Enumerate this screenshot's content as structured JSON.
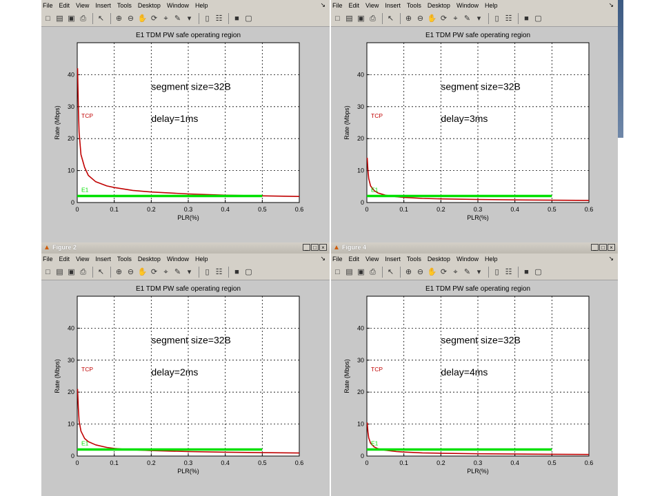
{
  "menu": [
    "File",
    "Edit",
    "View",
    "Insert",
    "Tools",
    "Desktop",
    "Window",
    "Help"
  ],
  "toolbar_icons": [
    "new-file-icon",
    "open-folder-icon",
    "save-icon",
    "print-icon",
    "arrow-icon",
    "zoom-in-icon",
    "zoom-out-icon",
    "pan-hand-icon",
    "rotate-3d-icon",
    "data-cursor-icon",
    "brush-icon",
    "link-icon",
    "colorbar-icon",
    "legend-icon",
    "hide-tools-icon",
    "show-tools-icon"
  ],
  "colors": {
    "tcp": "#c00000",
    "e1": "#00e000",
    "window_bg": "#c8c8c8",
    "plot_bg": "#ffffff"
  },
  "figures": [
    {
      "id": "fig1",
      "window_title": "",
      "has_titlebar": false,
      "annotation_size": "segment size=32B",
      "annotation_delay": "delay=1ms"
    },
    {
      "id": "fig3",
      "window_title": "",
      "has_titlebar": false,
      "annotation_size": "segment size=32B",
      "annotation_delay": "delay=3ms"
    },
    {
      "id": "fig2",
      "window_title": "Figure 2",
      "has_titlebar": true,
      "annotation_size": "segment size=32B",
      "annotation_delay": "delay=2ms"
    },
    {
      "id": "fig4",
      "window_title": "Figure 4",
      "has_titlebar": true,
      "annotation_size": "segment size=32B",
      "annotation_delay": "delay=4ms"
    }
  ],
  "chart_data": [
    {
      "type": "line",
      "title": "E1 TDM PW safe operating region",
      "xlabel": "PLR(%)",
      "ylabel": "Rate (Mbps)",
      "xlim": [
        0,
        0.6
      ],
      "ylim": [
        0,
        50
      ],
      "xticks": [
        "0",
        "0.1",
        "0.2",
        "0.3",
        "0.4",
        "0.5",
        "0.6"
      ],
      "yticks": [
        "0",
        "10",
        "20",
        "30",
        "40"
      ],
      "grid": true,
      "series": [
        {
          "name": "TCP",
          "color": "#c00000",
          "x": [
            0.001,
            0.003,
            0.005,
            0.01,
            0.02,
            0.03,
            0.05,
            0.08,
            0.1,
            0.15,
            0.2,
            0.3,
            0.4,
            0.5,
            0.6
          ],
          "y": [
            42,
            30,
            22,
            15,
            11,
            8.5,
            6.5,
            5.2,
            4.7,
            3.8,
            3.3,
            2.7,
            2.3,
            2.1,
            1.9
          ]
        },
        {
          "name": "E1",
          "color": "#00e000",
          "x": [
            0,
            0.5
          ],
          "y": [
            2.05,
            2.05
          ]
        }
      ]
    },
    {
      "type": "line",
      "title": "E1 TDM PW safe operating region",
      "xlabel": "PLR(%)",
      "ylabel": "Rate (Mbps)",
      "xlim": [
        0,
        0.6
      ],
      "ylim": [
        0,
        50
      ],
      "xticks": [
        "0",
        "0.1",
        "0.2",
        "0.3",
        "0.4",
        "0.5",
        "0.6"
      ],
      "yticks": [
        "0",
        "10",
        "20",
        "30",
        "40"
      ],
      "grid": true,
      "series": [
        {
          "name": "TCP",
          "color": "#c00000",
          "x": [
            0.001,
            0.003,
            0.005,
            0.01,
            0.02,
            0.03,
            0.05,
            0.08,
            0.1,
            0.15,
            0.2,
            0.3,
            0.4,
            0.5,
            0.6
          ],
          "y": [
            14,
            10,
            7.5,
            5.2,
            3.7,
            3.0,
            2.3,
            1.8,
            1.6,
            1.3,
            1.15,
            0.95,
            0.82,
            0.73,
            0.67
          ]
        },
        {
          "name": "E1",
          "color": "#00e000",
          "x": [
            0,
            0.5
          ],
          "y": [
            2.05,
            2.05
          ]
        }
      ]
    },
    {
      "type": "line",
      "title": "E1 TDM PW safe operating region",
      "xlabel": "PLR(%)",
      "ylabel": "Rate (Mbps)",
      "xlim": [
        0,
        0.6
      ],
      "ylim": [
        0,
        50
      ],
      "xticks": [
        "0",
        "0.1",
        "0.2",
        "0.3",
        "0.4",
        "0.5",
        "0.6"
      ],
      "yticks": [
        "0",
        "10",
        "20",
        "30",
        "40"
      ],
      "grid": true,
      "series": [
        {
          "name": "TCP",
          "color": "#c00000",
          "x": [
            0.001,
            0.003,
            0.005,
            0.01,
            0.02,
            0.03,
            0.05,
            0.08,
            0.1,
            0.15,
            0.2,
            0.3,
            0.4,
            0.5,
            0.6
          ],
          "y": [
            21,
            15,
            11,
            7.8,
            5.5,
            4.5,
            3.5,
            2.7,
            2.4,
            1.95,
            1.7,
            1.4,
            1.2,
            1.05,
            0.95
          ]
        },
        {
          "name": "E1",
          "color": "#00e000",
          "x": [
            0,
            0.5
          ],
          "y": [
            2.05,
            2.05
          ]
        }
      ]
    },
    {
      "type": "line",
      "title": "E1 TDM PW safe operating region",
      "xlabel": "PLR(%)",
      "ylabel": "Rate (Mbps)",
      "xlim": [
        0,
        0.6
      ],
      "ylim": [
        0,
        50
      ],
      "xticks": [
        "0",
        "0.1",
        "0.2",
        "0.3",
        "0.4",
        "0.5",
        "0.6"
      ],
      "yticks": [
        "0",
        "10",
        "20",
        "30",
        "40"
      ],
      "grid": true,
      "series": [
        {
          "name": "TCP",
          "color": "#c00000",
          "x": [
            0.001,
            0.003,
            0.005,
            0.01,
            0.02,
            0.03,
            0.05,
            0.08,
            0.1,
            0.15,
            0.2,
            0.3,
            0.4,
            0.5,
            0.6
          ],
          "y": [
            10.5,
            7.5,
            5.7,
            4.0,
            2.85,
            2.3,
            1.8,
            1.4,
            1.25,
            1.0,
            0.88,
            0.72,
            0.62,
            0.55,
            0.5
          ]
        },
        {
          "name": "E1",
          "color": "#00e000",
          "x": [
            0,
            0.5
          ],
          "y": [
            2.05,
            2.05
          ]
        }
      ]
    }
  ]
}
